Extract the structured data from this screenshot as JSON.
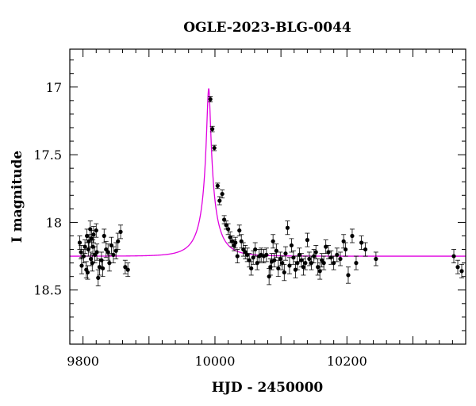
{
  "chart_data": {
    "type": "scatter",
    "title": "OGLE-2023-BLG-0044",
    "xlabel": "HJD - 2450000",
    "ylabel": "I magnitude",
    "xlim": [
      9780,
      10380
    ],
    "ylim": [
      18.9,
      16.72
    ],
    "y_inverted": true,
    "grid": false,
    "x_ticks": [
      9800,
      10000,
      10200
    ],
    "x_tick_labels": [
      "9800",
      "10000",
      "10200"
    ],
    "y_ticks": [
      17,
      17.5,
      18,
      18.5
    ],
    "y_tick_labels": [
      "17",
      "17.5",
      "18",
      "18.5"
    ],
    "colors": {
      "data": "#000000",
      "model": "#e000e0",
      "axes": "#000000"
    },
    "model": {
      "baseline": 18.25,
      "peak_time": 9990.5,
      "peak_mag": 17.01,
      "u0": 0.085,
      "tE": 32
    },
    "series": [
      {
        "marker": "dot-with-errorbars",
        "points": [
          {
            "x": 9795,
            "y": 18.15,
            "err": 0.05
          },
          {
            "x": 9797,
            "y": 18.22,
            "err": 0.05
          },
          {
            "x": 9798,
            "y": 18.32,
            "err": 0.06
          },
          {
            "x": 9801,
            "y": 18.25,
            "err": 0.05
          },
          {
            "x": 9803,
            "y": 18.18,
            "err": 0.05
          },
          {
            "x": 9805,
            "y": 18.35,
            "err": 0.06
          },
          {
            "x": 9806,
            "y": 18.1,
            "err": 0.05
          },
          {
            "x": 9807,
            "y": 18.37,
            "err": 0.05
          },
          {
            "x": 9808,
            "y": 18.2,
            "err": 0.05
          },
          {
            "x": 9809,
            "y": 18.14,
            "err": 0.05
          },
          {
            "x": 9811,
            "y": 18.05,
            "err": 0.06
          },
          {
            "x": 9812,
            "y": 18.27,
            "err": 0.05
          },
          {
            "x": 9813,
            "y": 18.12,
            "err": 0.06
          },
          {
            "x": 9814,
            "y": 18.3,
            "err": 0.06
          },
          {
            "x": 9815,
            "y": 18.18,
            "err": 0.05
          },
          {
            "x": 9816,
            "y": 18.09,
            "err": 0.06
          },
          {
            "x": 9818,
            "y": 18.24,
            "err": 0.06
          },
          {
            "x": 9820,
            "y": 18.06,
            "err": 0.05
          },
          {
            "x": 9821,
            "y": 18.22,
            "err": 0.06
          },
          {
            "x": 9823,
            "y": 18.41,
            "err": 0.06
          },
          {
            "x": 9825,
            "y": 18.33,
            "err": 0.06
          },
          {
            "x": 9828,
            "y": 18.28,
            "err": 0.06
          },
          {
            "x": 9830,
            "y": 18.34,
            "err": 0.06
          },
          {
            "x": 9832,
            "y": 18.1,
            "err": 0.05
          },
          {
            "x": 9835,
            "y": 18.2,
            "err": 0.06
          },
          {
            "x": 9838,
            "y": 18.22,
            "err": 0.06
          },
          {
            "x": 9840,
            "y": 18.3,
            "err": 0.06
          },
          {
            "x": 9843,
            "y": 18.17,
            "err": 0.06
          },
          {
            "x": 9846,
            "y": 18.24,
            "err": 0.06
          },
          {
            "x": 9850,
            "y": 18.21,
            "err": 0.06
          },
          {
            "x": 9853,
            "y": 18.14,
            "err": 0.06
          },
          {
            "x": 9857,
            "y": 18.07,
            "err": 0.05
          },
          {
            "x": 9864,
            "y": 18.33,
            "err": 0.05
          },
          {
            "x": 9868,
            "y": 18.35,
            "err": 0.05
          },
          {
            "x": 9993,
            "y": 17.09,
            "err": 0.02
          },
          {
            "x": 9996,
            "y": 17.31,
            "err": 0.02
          },
          {
            "x": 9999,
            "y": 17.45,
            "err": 0.02
          },
          {
            "x": 10004,
            "y": 17.73,
            "err": 0.02
          },
          {
            "x": 10007,
            "y": 17.84,
            "err": 0.03
          },
          {
            "x": 10011,
            "y": 17.79,
            "err": 0.03
          },
          {
            "x": 10014,
            "y": 17.98,
            "err": 0.03
          },
          {
            "x": 10017,
            "y": 18.02,
            "err": 0.03
          },
          {
            "x": 10020,
            "y": 18.05,
            "err": 0.04
          },
          {
            "x": 10023,
            "y": 18.11,
            "err": 0.04
          },
          {
            "x": 10026,
            "y": 18.14,
            "err": 0.04
          },
          {
            "x": 10029,
            "y": 18.17,
            "err": 0.04
          },
          {
            "x": 10031,
            "y": 18.15,
            "err": 0.04
          },
          {
            "x": 10034,
            "y": 18.25,
            "err": 0.05
          },
          {
            "x": 10037,
            "y": 18.06,
            "err": 0.04
          },
          {
            "x": 10040,
            "y": 18.14,
            "err": 0.05
          },
          {
            "x": 10043,
            "y": 18.2,
            "err": 0.05
          },
          {
            "x": 10046,
            "y": 18.22,
            "err": 0.05
          },
          {
            "x": 10049,
            "y": 18.24,
            "err": 0.05
          },
          {
            "x": 10052,
            "y": 18.28,
            "err": 0.05
          },
          {
            "x": 10055,
            "y": 18.34,
            "err": 0.05
          },
          {
            "x": 10058,
            "y": 18.26,
            "err": 0.05
          },
          {
            "x": 10061,
            "y": 18.2,
            "err": 0.05
          },
          {
            "x": 10064,
            "y": 18.3,
            "err": 0.05
          },
          {
            "x": 10067,
            "y": 18.25,
            "err": 0.05
          },
          {
            "x": 10070,
            "y": 18.24,
            "err": 0.05
          },
          {
            "x": 10074,
            "y": 18.25,
            "err": 0.05
          },
          {
            "x": 10078,
            "y": 18.24,
            "err": 0.05
          },
          {
            "x": 10082,
            "y": 18.4,
            "err": 0.06
          },
          {
            "x": 10084,
            "y": 18.33,
            "err": 0.06
          },
          {
            "x": 10086,
            "y": 18.29,
            "err": 0.06
          },
          {
            "x": 10088,
            "y": 18.14,
            "err": 0.05
          },
          {
            "x": 10090,
            "y": 18.28,
            "err": 0.05
          },
          {
            "x": 10093,
            "y": 18.21,
            "err": 0.05
          },
          {
            "x": 10096,
            "y": 18.34,
            "err": 0.06
          },
          {
            "x": 10099,
            "y": 18.27,
            "err": 0.05
          },
          {
            "x": 10102,
            "y": 18.3,
            "err": 0.05
          },
          {
            "x": 10105,
            "y": 18.37,
            "err": 0.06
          },
          {
            "x": 10107,
            "y": 18.23,
            "err": 0.05
          },
          {
            "x": 10110,
            "y": 18.04,
            "err": 0.05
          },
          {
            "x": 10113,
            "y": 18.32,
            "err": 0.06
          },
          {
            "x": 10116,
            "y": 18.17,
            "err": 0.05
          },
          {
            "x": 10119,
            "y": 18.26,
            "err": 0.05
          },
          {
            "x": 10122,
            "y": 18.35,
            "err": 0.06
          },
          {
            "x": 10125,
            "y": 18.3,
            "err": 0.05
          },
          {
            "x": 10128,
            "y": 18.24,
            "err": 0.05
          },
          {
            "x": 10131,
            "y": 18.28,
            "err": 0.05
          },
          {
            "x": 10134,
            "y": 18.33,
            "err": 0.06
          },
          {
            "x": 10137,
            "y": 18.3,
            "err": 0.05
          },
          {
            "x": 10140,
            "y": 18.13,
            "err": 0.05
          },
          {
            "x": 10143,
            "y": 18.27,
            "err": 0.05
          },
          {
            "x": 10146,
            "y": 18.3,
            "err": 0.05
          },
          {
            "x": 10150,
            "y": 18.25,
            "err": 0.05
          },
          {
            "x": 10153,
            "y": 18.22,
            "err": 0.05
          },
          {
            "x": 10156,
            "y": 18.33,
            "err": 0.06
          },
          {
            "x": 10159,
            "y": 18.36,
            "err": 0.06
          },
          {
            "x": 10162,
            "y": 18.28,
            "err": 0.05
          },
          {
            "x": 10165,
            "y": 18.3,
            "err": 0.05
          },
          {
            "x": 10168,
            "y": 18.18,
            "err": 0.05
          },
          {
            "x": 10172,
            "y": 18.22,
            "err": 0.05
          },
          {
            "x": 10176,
            "y": 18.26,
            "err": 0.05
          },
          {
            "x": 10180,
            "y": 18.3,
            "err": 0.05
          },
          {
            "x": 10185,
            "y": 18.24,
            "err": 0.05
          },
          {
            "x": 10190,
            "y": 18.27,
            "err": 0.05
          },
          {
            "x": 10195,
            "y": 18.14,
            "err": 0.05
          },
          {
            "x": 10198,
            "y": 18.2,
            "err": 0.05
          },
          {
            "x": 10202,
            "y": 18.39,
            "err": 0.06
          },
          {
            "x": 10208,
            "y": 18.1,
            "err": 0.05
          },
          {
            "x": 10214,
            "y": 18.3,
            "err": 0.05
          },
          {
            "x": 10222,
            "y": 18.15,
            "err": 0.05
          },
          {
            "x": 10228,
            "y": 18.2,
            "err": 0.05
          },
          {
            "x": 10244,
            "y": 18.27,
            "err": 0.05
          },
          {
            "x": 10362,
            "y": 18.25,
            "err": 0.05
          },
          {
            "x": 10368,
            "y": 18.33,
            "err": 0.05
          },
          {
            "x": 10374,
            "y": 18.36,
            "err": 0.05
          }
        ]
      }
    ]
  }
}
